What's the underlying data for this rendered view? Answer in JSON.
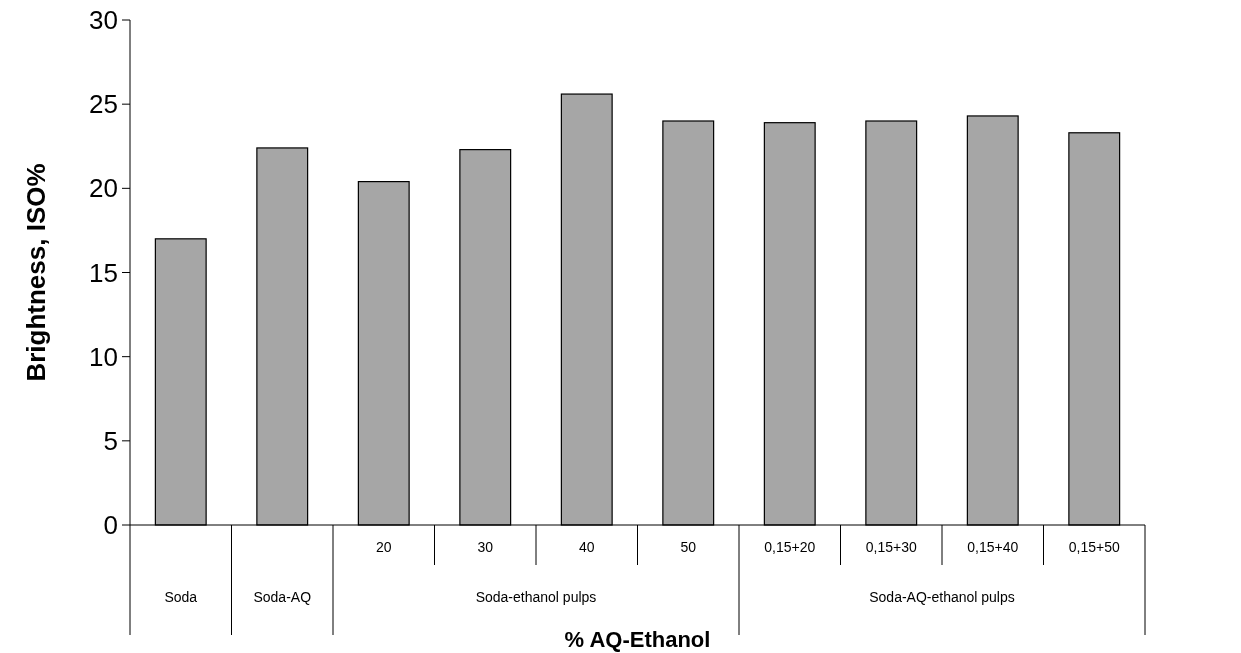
{
  "chart_data": {
    "type": "bar",
    "xlabel": "% AQ-Ethanol",
    "ylabel": "Brightness, ISO%",
    "categories": [
      null,
      null,
      "20",
      "30",
      "40",
      "50",
      "0,15+20",
      "0,15+30",
      "0,15+40",
      "0,15+50"
    ],
    "values": [
      17.0,
      22.4,
      20.4,
      22.3,
      25.6,
      24.0,
      23.9,
      24.0,
      24.3,
      23.3
    ],
    "color": "#a6a6a6",
    "ylim": [
      0,
      30
    ],
    "yticks": [
      0,
      5,
      10,
      15,
      20,
      25,
      30
    ],
    "grid": false,
    "annotations": [
      "Soda",
      "Soda-AQ",
      "Soda-ethanol pulps",
      "Soda-AQ-ethanol pulps"
    ]
  }
}
